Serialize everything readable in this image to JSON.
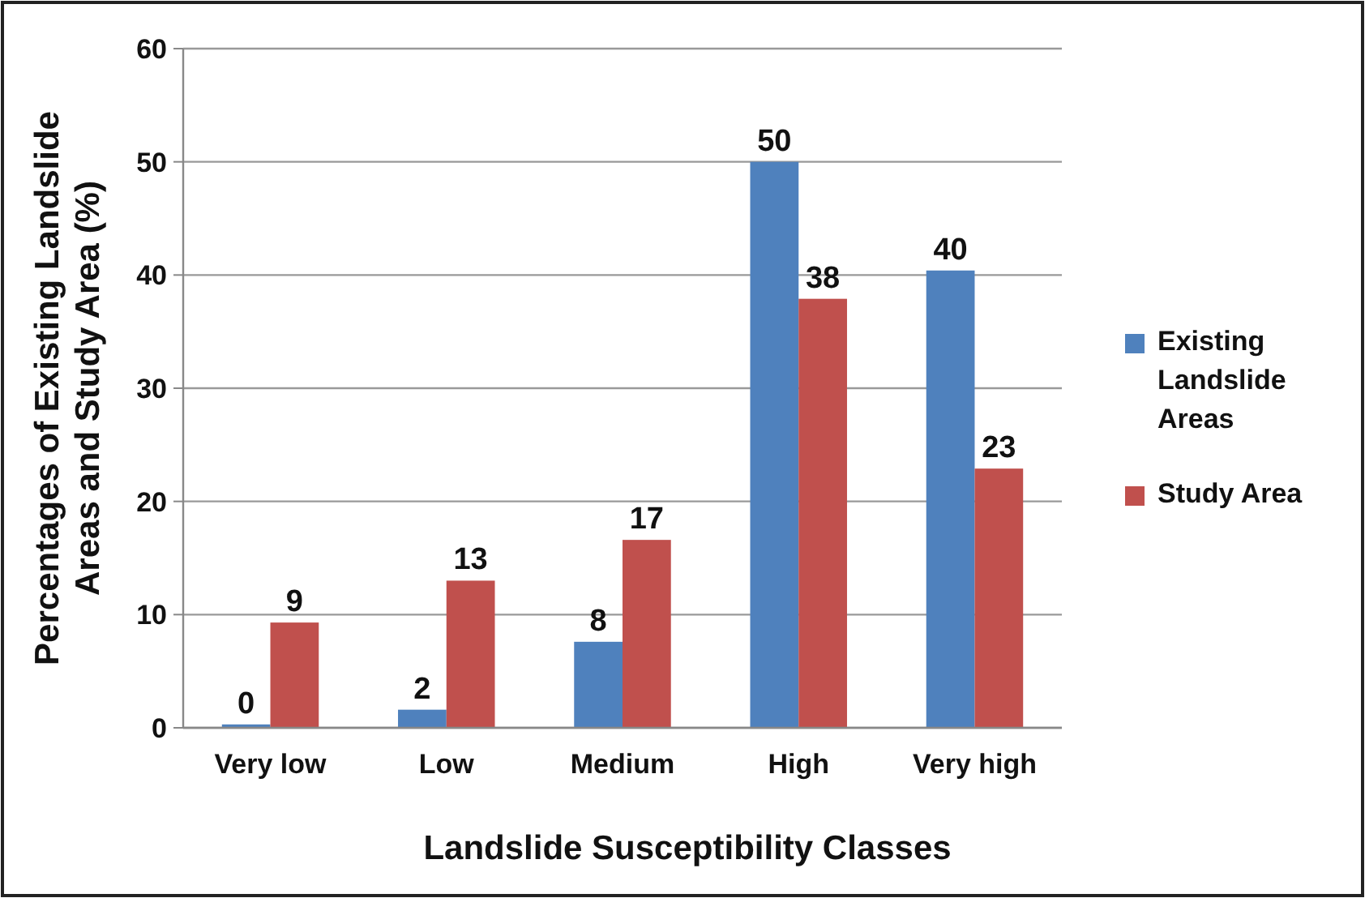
{
  "chart_data": {
    "type": "bar",
    "xlabel": "Landslide Susceptibility Classes",
    "ylabel": "Percentages of Existing Landslide Areas and Study Area (%)",
    "categories": [
      "Very low",
      "Low",
      "Medium",
      "High",
      "Very high"
    ],
    "series": [
      {
        "name": "Existing Landslide Areas",
        "color": "#4f81bd",
        "values": [
          0.3,
          1.6,
          7.6,
          50,
          40.4
        ],
        "value_labels": [
          "0",
          "2",
          "8",
          "50",
          "40"
        ]
      },
      {
        "name": "Study Area",
        "color": "#c0504d",
        "values": [
          9.3,
          13,
          16.6,
          37.9,
          22.9
        ],
        "value_labels": [
          "9",
          "13",
          "17",
          "38",
          "23"
        ]
      }
    ],
    "ylim": [
      0,
      60
    ],
    "yticks": [
      0,
      10,
      20,
      30,
      40,
      50,
      60
    ],
    "grid": "y",
    "legend": "right"
  }
}
